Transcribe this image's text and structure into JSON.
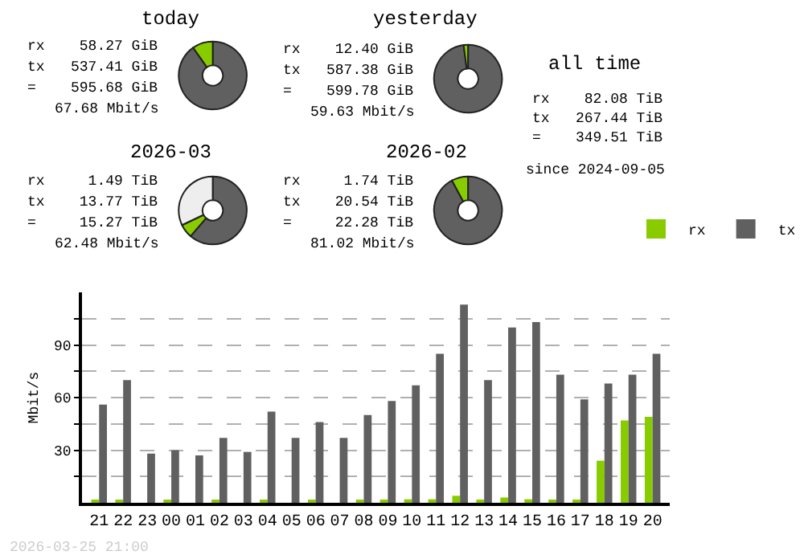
{
  "chart_data": [
    {
      "type": "donut",
      "title": "today",
      "categories": [
        null,
        null
      ],
      "values": [
        90.22,
        9.78
      ],
      "colors": [
        "#606060",
        "#88cc00"
      ],
      "annotations": [
        "rx    58.27 GiB",
        "tx   537.41 GiB",
        "=    595.68 GiB",
        "67.68 Mbit/s"
      ]
    },
    {
      "type": "donut",
      "title": "yesterday",
      "categories": [
        null,
        null
      ],
      "values": [
        97.93,
        2.07
      ],
      "colors": [
        "#606060",
        "#88cc00"
      ],
      "annotations": [
        "rx    12.40 GiB",
        "tx   587.38 GiB",
        "=    599.78 GiB",
        "59.63 Mbit/s"
      ]
    },
    {
      "type": "other",
      "title": "all time",
      "annotations": [
        "rx    82.08 TiB",
        "tx   267.44 TiB",
        "=    349.51 TiB",
        "since 2024-09-05"
      ]
    },
    {
      "type": "donut",
      "title": "2026-03",
      "categories": [
        null,
        null,
        null
      ],
      "values": [
        61.3,
        6.6,
        32.1
      ],
      "colors": [
        "#606060",
        "#88cc00",
        "#eeeeee"
      ],
      "annotations": [
        "rx     1.49 TiB",
        "tx    13.77 TiB",
        "=     15.27 TiB",
        "62.48 Mbit/s"
      ]
    },
    {
      "type": "donut",
      "title": "2026-02",
      "categories": [
        null,
        null
      ],
      "values": [
        92.19,
        7.81
      ],
      "colors": [
        "#606060",
        "#88cc00"
      ],
      "annotations": [
        "rx     1.74 TiB",
        "tx    20.54 TiB",
        "=     22.28 TiB",
        "81.02 Mbit/s"
      ]
    },
    {
      "type": "bar",
      "ylabel": "Mbit/s",
      "categories": [
        "21",
        "22",
        "23",
        "00",
        "01",
        "02",
        "03",
        "04",
        "05",
        "06",
        "07",
        "08",
        "09",
        "10",
        "11",
        "12",
        "13",
        "14",
        "15",
        "16",
        "17",
        "18",
        "19",
        "20"
      ],
      "series": [
        {
          "name": "rx",
          "color": "#88cc00",
          "values": [
            1,
            1,
            0,
            1,
            0,
            1,
            0,
            1,
            0,
            1,
            0,
            1,
            1,
            2,
            2,
            4,
            1,
            3,
            2,
            1,
            1,
            24,
            47,
            49
          ]
        },
        {
          "name": "tx",
          "color": "#606060",
          "values": [
            56,
            70,
            28,
            30,
            27,
            37,
            29,
            52,
            37,
            46,
            37,
            50,
            58,
            67,
            85,
            113,
            70,
            100,
            103,
            73,
            59,
            68,
            73,
            85
          ]
        }
      ],
      "ylim": [
        0,
        120
      ],
      "yticks": [
        {
          "value": 15,
          "label": null
        },
        30,
        {
          "value": 45,
          "label": null
        },
        60,
        {
          "value": 75,
          "label": null
        },
        90,
        {
          "value": 105,
          "label": null
        }
      ],
      "grid": "y",
      "legend": "top right",
      "annotations": [
        "2026-03-25 21:00"
      ]
    }
  ]
}
